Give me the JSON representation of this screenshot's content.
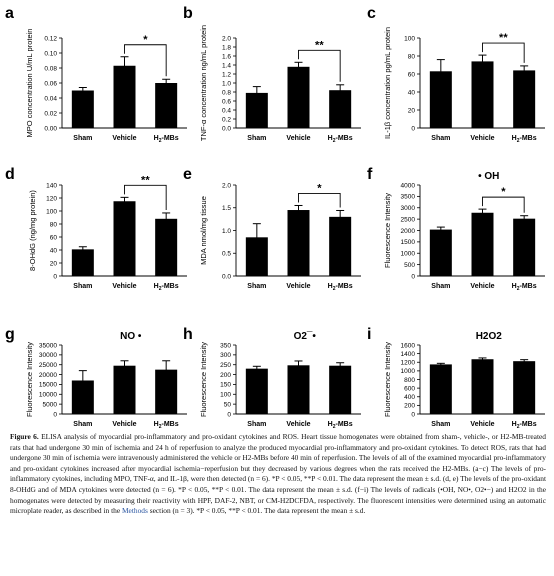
{
  "figure": {
    "chart_data": [
      {
        "panel": "a",
        "type": "bar",
        "categories": [
          "Sham",
          "Vehicle",
          "H2-MBs"
        ],
        "values": [
          0.05,
          0.083,
          0.06
        ],
        "errors": [
          0.004,
          0.012,
          0.005
        ],
        "ylabel": "MPO concentration U/mL protein",
        "yticks": [
          "0.00",
          "0.02",
          "0.04",
          "0.06",
          "0.08",
          "0.10",
          "0.12"
        ],
        "ylim": [
          0,
          0.12
        ],
        "significance": {
          "between": [
            1,
            2
          ],
          "label": "*"
        }
      },
      {
        "panel": "b",
        "type": "bar",
        "categories": [
          "Sham",
          "Vehicle",
          "H2-MBs"
        ],
        "values": [
          0.78,
          1.36,
          0.84
        ],
        "errors": [
          0.14,
          0.1,
          0.12
        ],
        "ylabel": "TNF-α concentration ng/mL protein",
        "yticks": [
          "0.0",
          "0.2",
          "0.4",
          "0.6",
          "0.8",
          "1.0",
          "1.2",
          "1.4",
          "1.6",
          "1.8",
          "2.0"
        ],
        "ylim": [
          0,
          2.0
        ],
        "significance": {
          "between": [
            1,
            2
          ],
          "label": "**"
        }
      },
      {
        "panel": "c",
        "type": "bar",
        "categories": [
          "Sham",
          "Vehicle",
          "H2-MBs"
        ],
        "values": [
          63,
          74,
          64
        ],
        "errors": [
          13,
          7,
          5
        ],
        "ylabel": "IL-1β concentration pg/mL protein",
        "yticks": [
          "0",
          "20",
          "40",
          "60",
          "80",
          "100"
        ],
        "ylim": [
          0,
          100
        ],
        "significance": {
          "between": [
            1,
            2
          ],
          "label": "**"
        }
      },
      {
        "panel": "d",
        "type": "bar",
        "categories": [
          "Sham",
          "Vehicle",
          "H2-MBs"
        ],
        "values": [
          41,
          115,
          88
        ],
        "errors": [
          4,
          6,
          9
        ],
        "ylabel": "8-OHdG (ng/mg protein)",
        "yticks": [
          "0",
          "20",
          "40",
          "60",
          "80",
          "100",
          "120",
          "140"
        ],
        "ylim": [
          0,
          140
        ],
        "significance": {
          "between": [
            1,
            2
          ],
          "label": "**"
        }
      },
      {
        "panel": "e",
        "type": "bar",
        "categories": [
          "Sham",
          "Vehicle",
          "H2-MBs"
        ],
        "values": [
          0.85,
          1.45,
          1.3
        ],
        "errors": [
          0.3,
          0.1,
          0.14
        ],
        "ylabel": "MDA nmol/mg tissue",
        "yticks": [
          "0.0",
          "0.5",
          "1.0",
          "1.5",
          "2.0"
        ],
        "ylim": [
          0,
          2.0
        ],
        "significance": {
          "between": [
            1,
            2
          ],
          "label": "*"
        }
      },
      {
        "panel": "f",
        "type": "bar",
        "categories": [
          "Sham",
          "Vehicle",
          "H2-MBs"
        ],
        "values": [
          2040,
          2780,
          2520
        ],
        "errors": [
          110,
          160,
          130
        ],
        "ylabel": "Fluorescence Intensity",
        "title": "• OH",
        "yticks": [
          "0",
          "500",
          "1000",
          "1500",
          "2000",
          "2500",
          "3000",
          "3500",
          "4000"
        ],
        "ylim": [
          0,
          4000
        ],
        "significance": {
          "between": [
            1,
            2
          ],
          "label": "*"
        }
      },
      {
        "panel": "g",
        "type": "bar",
        "categories": [
          "Sham",
          "Vehicle",
          "H2-MBs"
        ],
        "values": [
          17000,
          24500,
          22500
        ],
        "errors": [
          5000,
          2500,
          4500
        ],
        "ylabel": "Fluorescence Intensity",
        "title": "NO •",
        "yticks": [
          "0",
          "5000",
          "10000",
          "15000",
          "20000",
          "25000",
          "30000",
          "35000"
        ],
        "ylim": [
          0,
          35000
        ]
      },
      {
        "panel": "h",
        "type": "bar",
        "categories": [
          "Sham",
          "Vehicle",
          "H2-MBs"
        ],
        "values": [
          230,
          247,
          245
        ],
        "errors": [
          12,
          22,
          15
        ],
        "ylabel": "Fluorescence Intensity",
        "title": "O2¯•",
        "yticks": [
          "0",
          "50",
          "100",
          "150",
          "200",
          "250",
          "300",
          "350"
        ],
        "ylim": [
          0,
          350
        ]
      },
      {
        "panel": "i",
        "type": "bar",
        "categories": [
          "Sham",
          "Vehicle",
          "H2-MBs"
        ],
        "values": [
          1150,
          1270,
          1225
        ],
        "errors": [
          25,
          30,
          35
        ],
        "ylabel": "Fluorescence Intensity",
        "title": "H2O2",
        "yticks": [
          "0",
          "200",
          "400",
          "600",
          "800",
          "1000",
          "1200",
          "1400",
          "1600"
        ],
        "ylim": [
          0,
          1600
        ]
      }
    ]
  },
  "caption": {
    "label": "Figure 6.",
    "text_before_link": "ELISA analysis of myocardial pro-inflammatory and pro-oxidant cytokines and ROS. Heart tissue homogenates were obtained from sham-, vehicle-, or H2-MB-treated rats that had undergone 30 min of ischemia and 24 h of reperfusion to analyze the produced myocardial pro-inflammatory and pro-oxidant cytokines. To detect ROS, rats that had undergone 30 min of ischemia were intravenously administered the vehicle or H2-MBs before 40 min of reperfusion. The levels of all of the examined myocardial pro-inflammatory and pro-oxidant cytokines increased after myocardial ischemia−reperfusion but they decreased by various degrees when the rats received the H2-MBs. (a−c) The levels of pro-inflammatory cytokines, including MPO, TNF-α, and IL-1β, were then detected (n = 6). *P < 0.05, **P < 0.01. The data represent the mean ± s.d. (d, e) The levels of the pro-oxidant 8-OHdG and of MDA cytokines were detected (n = 6). *P < 0.05, **P < 0.01. The data represent the mean ± s.d. (f−i) The levels of radicals (•OH, NO•, O2•−) and H2O2 in the homogenates were detected by measuring their reactivity with HPF, DAF-2, NBT, or CM-H2DCFDA, respectively. The fluorescent intensities were determined using an automatic microplate reader, as described in the",
    "link": "Methods",
    "text_after_link": "section (n = 3). *P < 0.05, **P < 0.01. The data represent the mean ± s.d."
  }
}
